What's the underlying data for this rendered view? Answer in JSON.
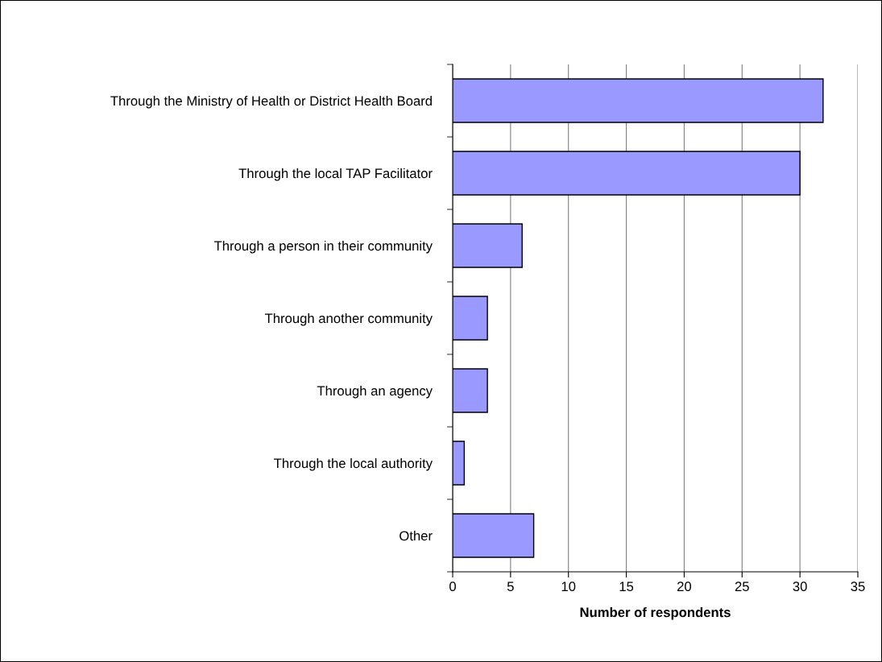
{
  "chart_data": {
    "type": "bar",
    "orientation": "horizontal",
    "xlabel": "Number of respondents",
    "categories": [
      "Through the Ministry of Health or District Health Board",
      "Through the local TAP Facilitator",
      "Through a person in their community",
      "Through another community",
      "Through an agency",
      "Through the local authority",
      "Other"
    ],
    "values": [
      32,
      30,
      6,
      3,
      3,
      1,
      7
    ],
    "color": "#9999ff",
    "xlim": [
      0,
      35
    ],
    "xticks": [
      0,
      5,
      10,
      15,
      20,
      25,
      30,
      35
    ],
    "grid": "x",
    "legend": false
  }
}
